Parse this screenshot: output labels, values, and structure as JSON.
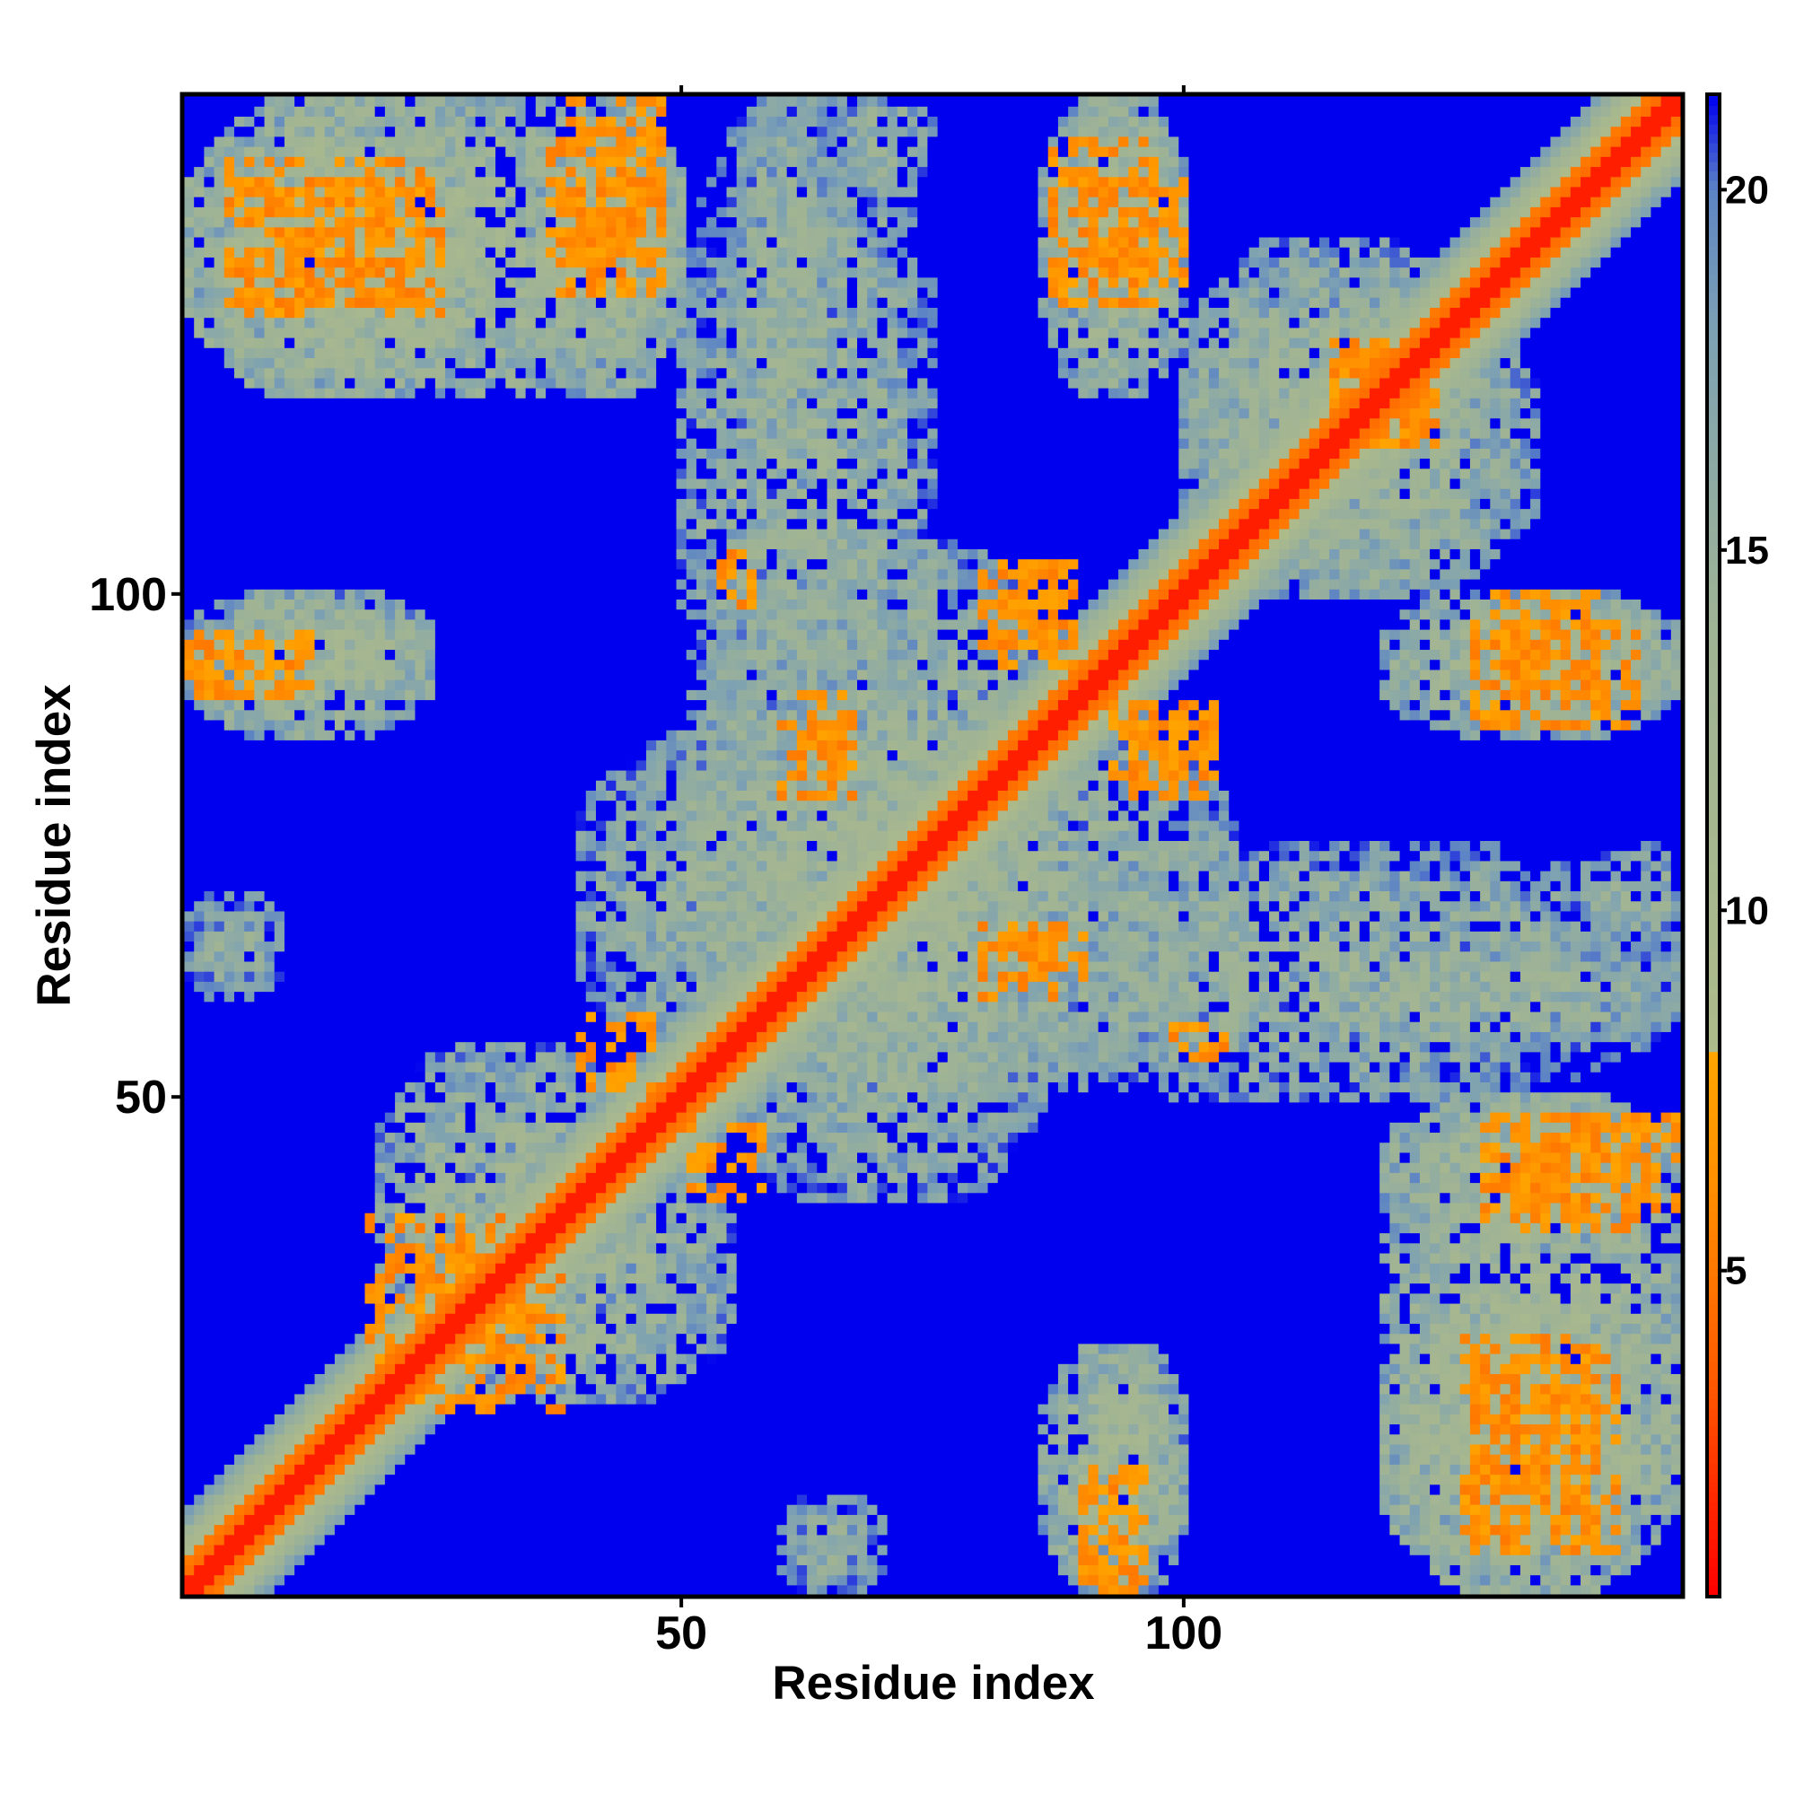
{
  "chart_data": {
    "type": "heatmap",
    "title": "",
    "xlabel": "Residue index",
    "ylabel": "Residue index",
    "xlim": [
      1,
      149
    ],
    "ylim": [
      1,
      149
    ],
    "x_ticks": [
      50,
      100
    ],
    "y_ticks": [
      50,
      100
    ],
    "colorbar": {
      "range": [
        0.5,
        21.3
      ],
      "ticks": [
        5,
        10,
        15,
        20
      ],
      "placement": "right",
      "stops": [
        {
          "value": 0.5,
          "color": "#ff0000"
        },
        {
          "value": 3.5,
          "color": "#ff5a00"
        },
        {
          "value": 6.0,
          "color": "#ff8c00"
        },
        {
          "value": 8.0,
          "color": "#ffa500"
        },
        {
          "value": 8.01,
          "color": "#aebb8a"
        },
        {
          "value": 14.0,
          "color": "#9fb395"
        },
        {
          "value": 18.0,
          "color": "#7ea2b2"
        },
        {
          "value": 20.0,
          "color": "#5d84c4"
        },
        {
          "value": 21.3,
          "color": "#0000f0"
        }
      ]
    },
    "cap_color": "#0000ee",
    "grid": false,
    "legend": "none",
    "value_description": "approximate pairwise contact distances; diagonal band near 0, dense contact patches between residue ranges",
    "contact_patches": [
      {
        "x": [
          1,
          30
        ],
        "y": [
          120,
          149
        ],
        "level": 11
      },
      {
        "x": [
          35,
          50
        ],
        "y": [
          120,
          149
        ],
        "level": 12
      },
      {
        "x": [
          88,
          100
        ],
        "y": [
          125,
          149
        ],
        "level": 12
      },
      {
        "x": [
          65,
          75
        ],
        "y": [
          140,
          149
        ],
        "level": 14
      },
      {
        "x": [
          1,
          25
        ],
        "y": [
          86,
          100
        ],
        "level": 12
      },
      {
        "x": [
          120,
          149
        ],
        "y": [
          86,
          100
        ],
        "level": 12
      },
      {
        "x": [
          1,
          10
        ],
        "y": [
          60,
          70
        ],
        "level": 16
      },
      {
        "x": [
          20,
          45
        ],
        "y": [
          25,
          55
        ],
        "level": 13
      },
      {
        "x": [
          120,
          149
        ],
        "y": [
          1,
          50
        ],
        "level": 12
      },
      {
        "x": [
          90,
          100
        ],
        "y": [
          1,
          25
        ],
        "level": 13
      },
      {
        "x": [
          60,
          70
        ],
        "y": [
          1,
          10
        ],
        "level": 15
      },
      {
        "x": [
          50,
          90
        ],
        "y": [
          40,
          105
        ],
        "level": 13
      },
      {
        "x": [
          80,
          149
        ],
        "y": [
          50,
          75
        ],
        "level": 14
      },
      {
        "x": [
          100,
          135
        ],
        "y": [
          100,
          130
        ],
        "level": 13
      },
      {
        "x": [
          55,
          65
        ],
        "y": [
          110,
          149
        ],
        "level": 14
      }
    ],
    "strong_contacts": [
      {
        "x": [
          81,
          89
        ],
        "y": [
          93,
          102
        ],
        "level": 6
      },
      {
        "x": [
          95,
          103
        ],
        "y": [
          80,
          89
        ],
        "level": 6
      },
      {
        "x": [
          60,
          67
        ],
        "y": [
          80,
          87
        ],
        "level": 6
      },
      {
        "x": [
          82,
          90
        ],
        "y": [
          62,
          67
        ],
        "level": 6
      },
      {
        "x": [
          5,
          24
        ],
        "y": [
          129,
          143
        ],
        "level": 6
      },
      {
        "x": [
          37,
          48
        ],
        "y": [
          133,
          146
        ],
        "level": 6
      },
      {
        "x": [
          90,
          100
        ],
        "y": [
          131,
          141
        ],
        "level": 6
      },
      {
        "x": [
          115,
          125
        ],
        "y": [
          115,
          125
        ],
        "level": 6
      },
      {
        "x": [
          19,
          35
        ],
        "y": [
          24,
          38
        ],
        "level": 6
      },
      {
        "x": [
          51,
          58
        ],
        "y": [
          40,
          47
        ],
        "level": 6
      },
      {
        "x": [
          128,
          141
        ],
        "y": [
          7,
          26
        ],
        "level": 6
      },
      {
        "x": [
          130,
          149
        ],
        "y": [
          38,
          48
        ],
        "level": 6
      },
      {
        "x": [
          1,
          13
        ],
        "y": [
          90,
          96
        ],
        "level": 6
      },
      {
        "x": [
          129,
          145
        ],
        "y": [
          87,
          97
        ],
        "level": 6
      },
      {
        "x": [
          54,
          57
        ],
        "y": [
          99,
          104
        ],
        "level": 6
      },
      {
        "x": [
          90,
          95
        ],
        "y": [
          1,
          8
        ],
        "level": 6
      }
    ]
  }
}
